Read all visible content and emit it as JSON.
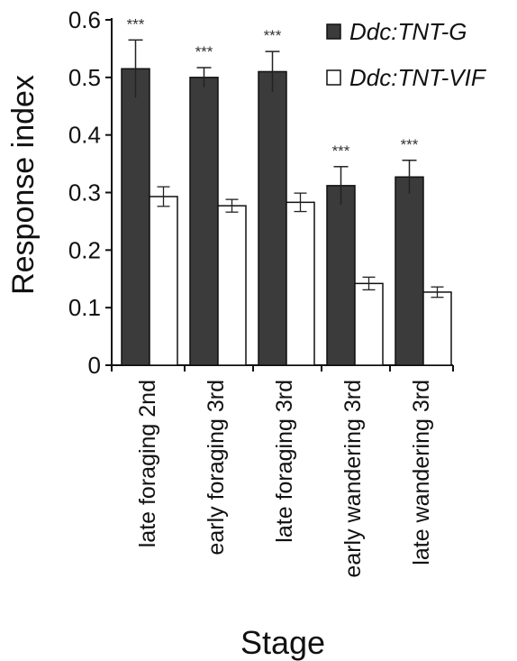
{
  "chart_data": {
    "type": "bar",
    "xlabel": "Stage",
    "ylabel": "Response index",
    "ylim": [
      0,
      0.6
    ],
    "yticks": [
      "0",
      "0.1",
      "0.2",
      "0.3",
      "0.4",
      "0.5",
      "0.6"
    ],
    "categories": [
      "late foraging 2nd",
      "early foraging 3rd",
      "late foraging 3rd",
      "early wandering 3rd",
      "late wandering 3rd"
    ],
    "series": [
      {
        "name": "Ddc:TNT-G",
        "color": "#3b3b3b",
        "values": [
          0.515,
          0.5,
          0.51,
          0.312,
          0.327
        ],
        "errors": [
          0.05,
          0.017,
          0.035,
          0.033,
          0.029
        ]
      },
      {
        "name": "Ddc:TNT-VIF",
        "color": "#ffffff",
        "values": [
          0.293,
          0.277,
          0.283,
          0.142,
          0.127
        ],
        "errors": [
          0.017,
          0.011,
          0.016,
          0.011,
          0.009
        ]
      }
    ],
    "annotations": [
      "***",
      "***",
      "***",
      "***",
      "***"
    ],
    "legend_position": "top-right",
    "grid": false
  }
}
